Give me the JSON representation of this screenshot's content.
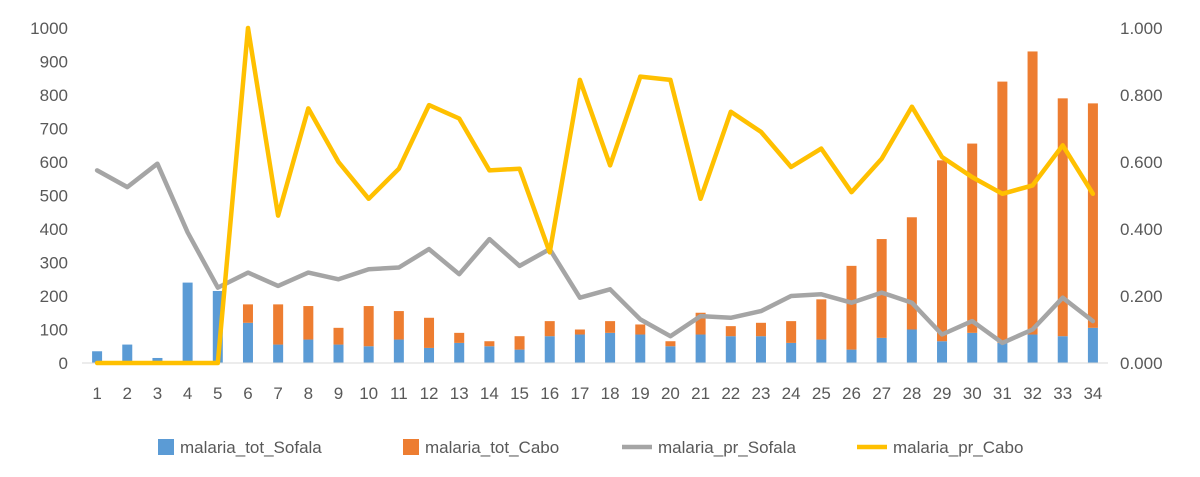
{
  "chart_data": {
    "type": "bar",
    "stacked": true,
    "categories": [
      "1",
      "2",
      "3",
      "4",
      "5",
      "6",
      "7",
      "8",
      "9",
      "10",
      "11",
      "12",
      "13",
      "14",
      "15",
      "16",
      "17",
      "18",
      "19",
      "20",
      "21",
      "22",
      "23",
      "24",
      "25",
      "26",
      "27",
      "28",
      "29",
      "30",
      "31",
      "32",
      "33",
      "34"
    ],
    "x": [
      1,
      2,
      3,
      4,
      5,
      6,
      7,
      8,
      9,
      10,
      11,
      12,
      13,
      14,
      15,
      16,
      17,
      18,
      19,
      20,
      21,
      22,
      23,
      24,
      25,
      26,
      27,
      28,
      29,
      30,
      31,
      32,
      33,
      34
    ],
    "y_left": {
      "ylim": [
        0,
        1000
      ],
      "ticks": [
        "0",
        "100",
        "200",
        "300",
        "400",
        "500",
        "600",
        "700",
        "800",
        "900",
        "1000"
      ]
    },
    "y_right": {
      "ylim": [
        0,
        1.0
      ],
      "ticks": [
        "0.000",
        "0.200",
        "0.400",
        "0.600",
        "0.800",
        "1.000"
      ]
    },
    "grid": false,
    "legend_position": "bottom",
    "series": [
      {
        "name": "malaria_tot_Sofala",
        "kind": "bar",
        "axis": "left",
        "color": "#5B9BD5",
        "values": [
          35,
          55,
          15,
          240,
          215,
          120,
          55,
          70,
          55,
          50,
          70,
          45,
          60,
          50,
          40,
          80,
          85,
          90,
          85,
          50,
          85,
          80,
          80,
          60,
          70,
          40,
          75,
          100,
          65,
          90,
          60,
          85,
          80,
          105
        ]
      },
      {
        "name": "malaria_tot_Cabo",
        "kind": "bar",
        "axis": "left",
        "color": "#ED7D31",
        "values": [
          0,
          0,
          0,
          0,
          0,
          55,
          120,
          100,
          50,
          120,
          85,
          90,
          30,
          15,
          40,
          45,
          15,
          35,
          30,
          15,
          65,
          30,
          40,
          65,
          120,
          250,
          295,
          335,
          540,
          565,
          780,
          845,
          710,
          670
        ]
      },
      {
        "name": "malaria_pr_Sofala",
        "kind": "line",
        "axis": "right",
        "color": "#A5A5A5",
        "values": [
          0.575,
          0.525,
          0.595,
          0.39,
          0.225,
          0.27,
          0.23,
          0.27,
          0.25,
          0.28,
          0.285,
          0.34,
          0.265,
          0.37,
          0.29,
          0.34,
          0.195,
          0.22,
          0.13,
          0.08,
          0.14,
          0.135,
          0.155,
          0.2,
          0.205,
          0.18,
          0.21,
          0.18,
          0.085,
          0.125,
          0.06,
          0.1,
          0.195,
          0.125
        ]
      },
      {
        "name": "malaria_pr_Cabo",
        "kind": "line",
        "axis": "right",
        "color": "#FFC000",
        "values": [
          0.0,
          0.0,
          0.0,
          0.0,
          0.0,
          1.0,
          0.44,
          0.76,
          0.6,
          0.49,
          0.58,
          0.77,
          0.73,
          0.575,
          0.58,
          0.33,
          0.845,
          0.59,
          0.855,
          0.845,
          0.49,
          0.75,
          0.69,
          0.585,
          0.64,
          0.51,
          0.61,
          0.765,
          0.615,
          0.555,
          0.505,
          0.53,
          0.65,
          0.505
        ]
      }
    ]
  }
}
